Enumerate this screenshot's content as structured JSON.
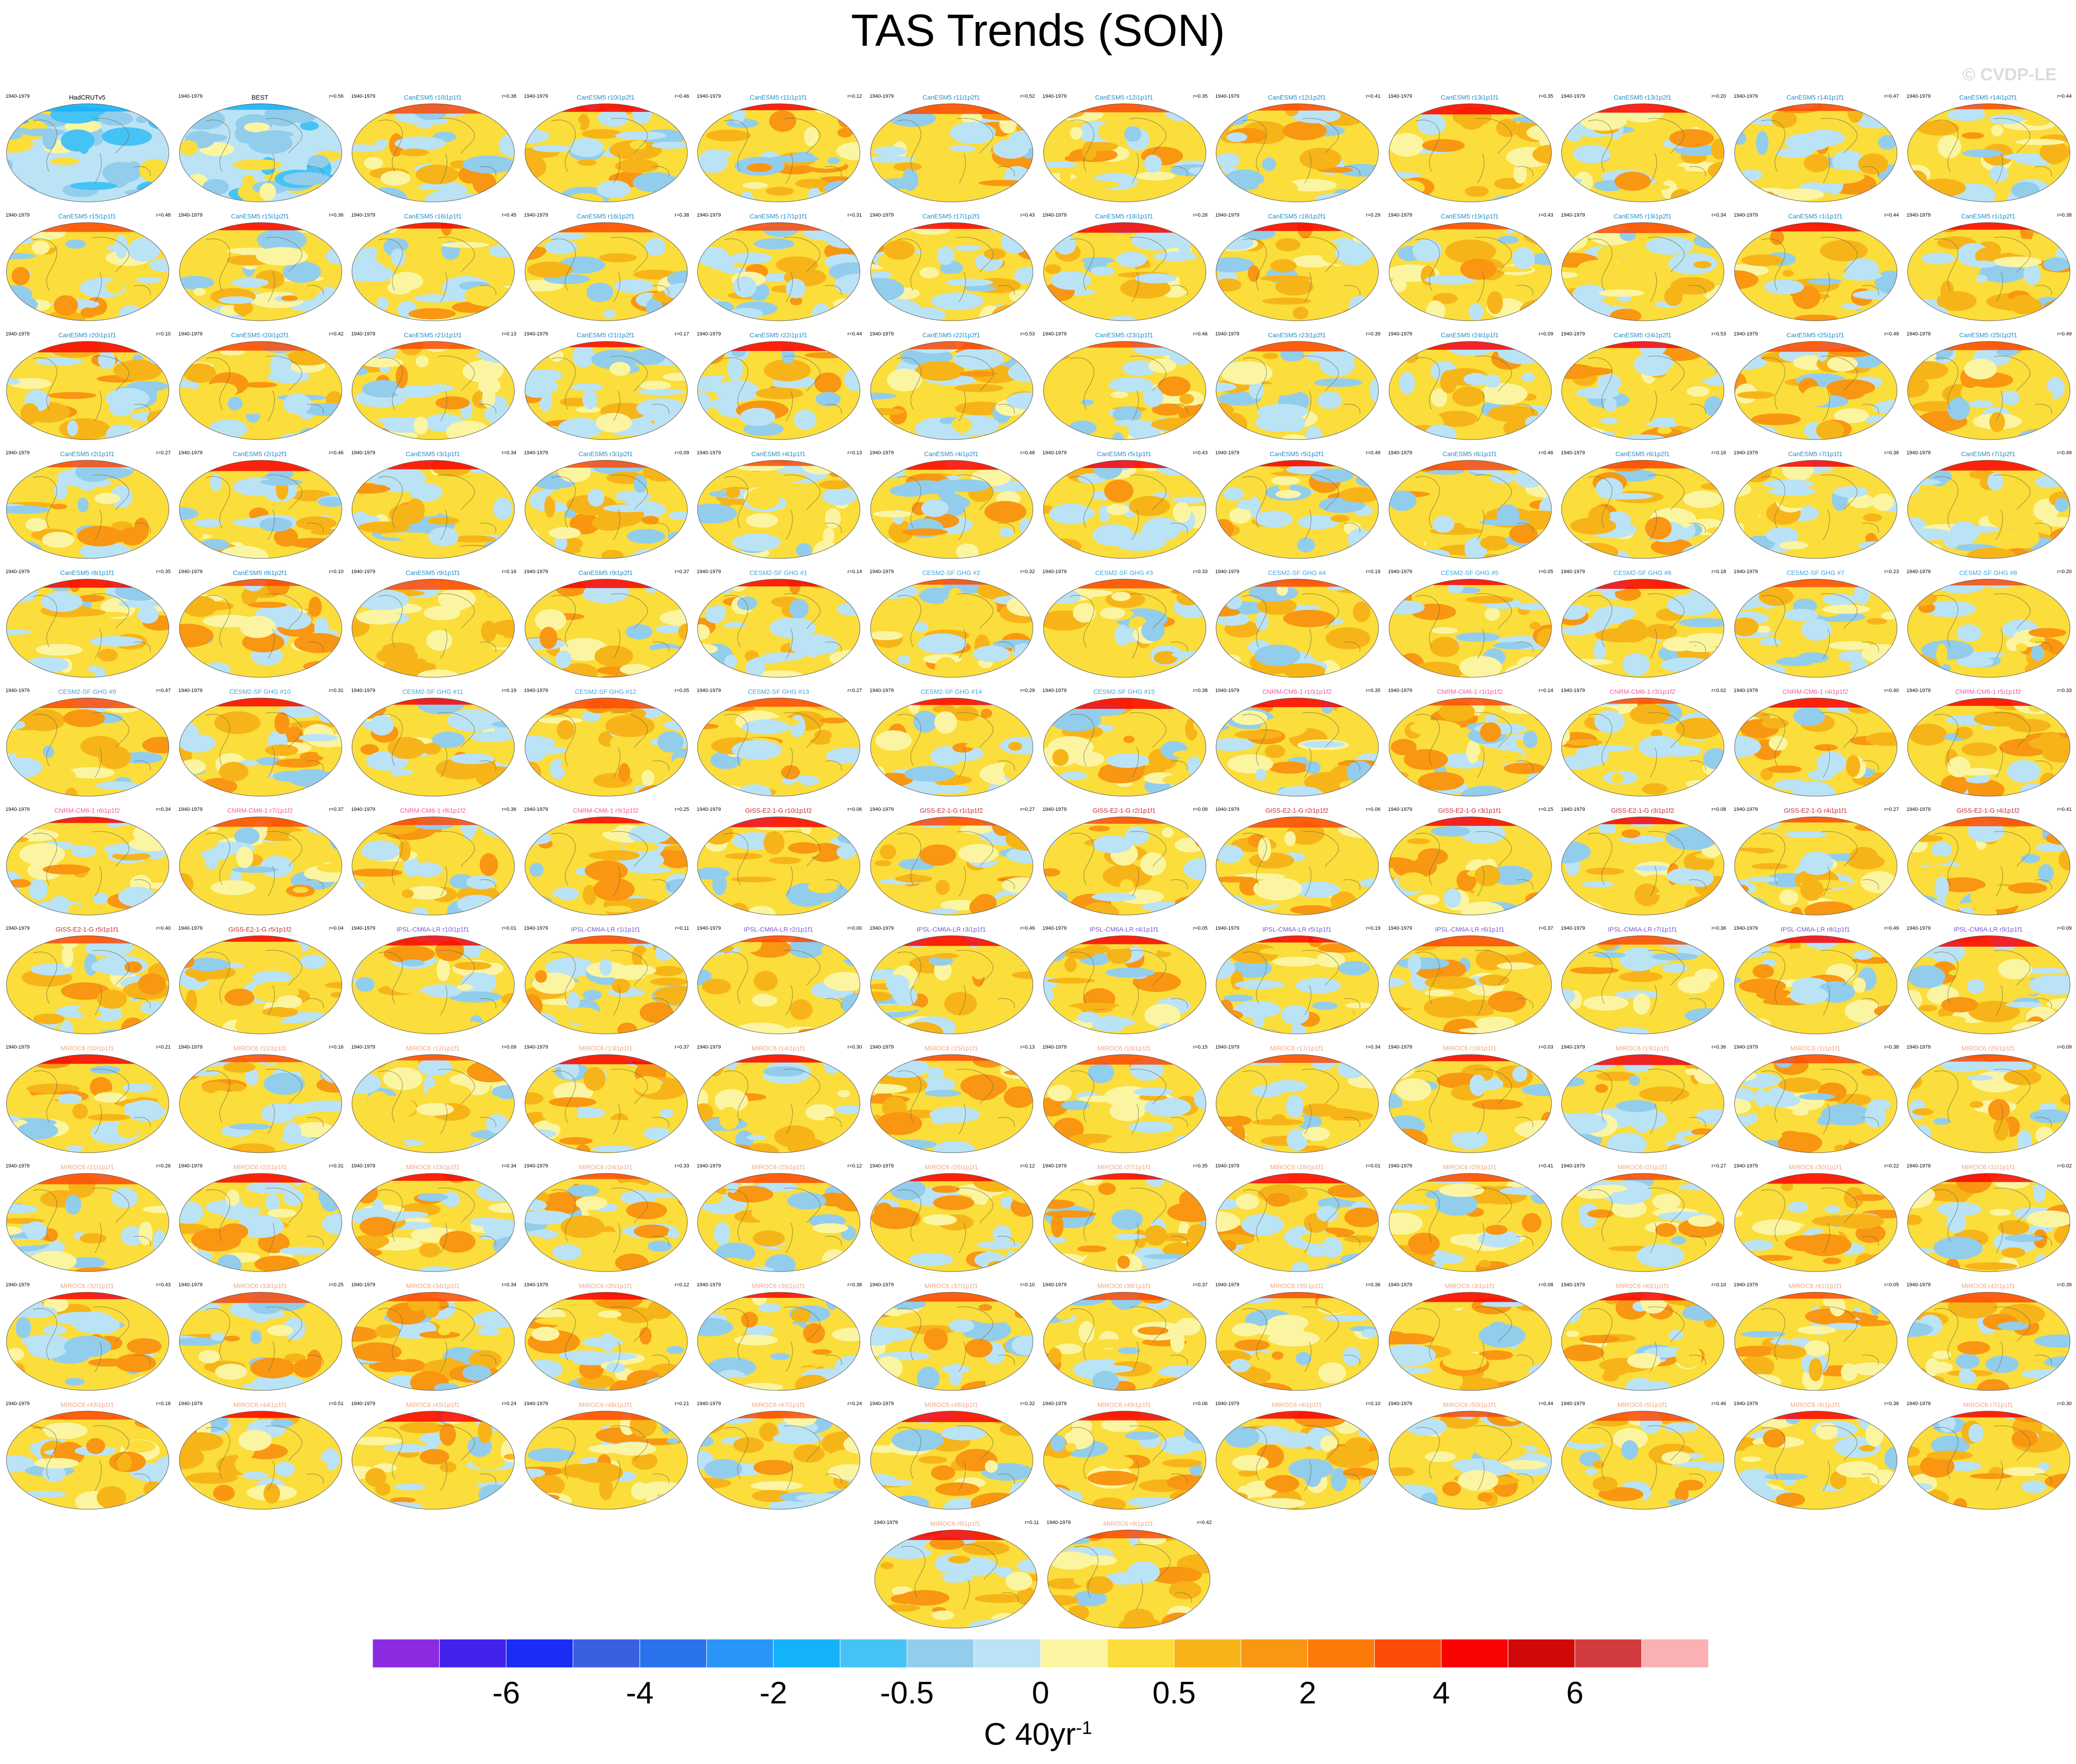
{
  "title": "TAS Trends (SON)",
  "watermark": "© CVDP-LE",
  "period_label": "1940-1979",
  "colors": {
    "palette": [
      "#8a2be2",
      "#4422ee",
      "#1a2cf5",
      "#3a5fe0",
      "#2a72ec",
      "#2895f7",
      "#14b2f8",
      "#45c3f5",
      "#93cdec",
      "#bbe3f6",
      "#fbf5a2",
      "#fbdd3b",
      "#f7b418",
      "#f99612",
      "#fb7a08",
      "#fc4a08",
      "#f90202",
      "#d00808",
      "#d23c3e",
      "#fbb0b3"
    ],
    "obs_label": "#000000",
    "CanESM5": "#1f8cc7",
    "CESM2-SF GHG": "#3fa3df",
    "CNRM-CM6-1": "#f05aa0",
    "GISS-E2-1-G": "#c8282d",
    "IPSL-CM6A-LR": "#7855d6",
    "MIROC6": "#f4a582"
  },
  "colorbar": {
    "unit": "C 40yr",
    "unit_exponent": "-1",
    "tick_labels": [
      "-6",
      "-4",
      "-2",
      "-0.5",
      "0",
      "0.5",
      "2",
      "4",
      "6"
    ],
    "tick_box_index": [
      2,
      4,
      6,
      8,
      10,
      12,
      14,
      16,
      18
    ]
  },
  "chart_data": {
    "type": "heatmap",
    "title": "TAS Trends (SON)",
    "layout": "small-multiple global maps, 12 per row",
    "period": "1940-1979",
    "panels": [
      {
        "name": "HadCRUTv5",
        "r": null
      },
      {
        "name": "BEST",
        "r": 0.56
      },
      {
        "name": "CanESM5 r10i1p1f1",
        "r": 0.38
      },
      {
        "name": "CanESM5 r10i1p2f1",
        "r": 0.46
      },
      {
        "name": "CanESM5 r11i1p1f1",
        "r": 0.12
      },
      {
        "name": "CanESM5 r11i1p2f1",
        "r": 0.52
      },
      {
        "name": "CanESM5 r12i1p1f1",
        "r": 0.35
      },
      {
        "name": "CanESM5 r12i1p2f1",
        "r": 0.41
      },
      {
        "name": "CanESM5 r13i1p1f1",
        "r": 0.35
      },
      {
        "name": "CanESM5 r13i1p2f1",
        "r": 0.2
      },
      {
        "name": "CanESM5 r14i1p1f1",
        "r": 0.47
      },
      {
        "name": "CanESM5 r14i1p2f1",
        "r": 0.44
      },
      {
        "name": "CanESM5 r15i1p1f1",
        "r": 0.48
      },
      {
        "name": "CanESM5 r15i1p2f1",
        "r": 0.36
      },
      {
        "name": "CanESM5 r16i1p1f1",
        "r": 0.45
      },
      {
        "name": "CanESM5 r16i1p2f1",
        "r": 0.38
      },
      {
        "name": "CanESM5 r17i1p1f1",
        "r": 0.31
      },
      {
        "name": "CanESM5 r17i1p2f1",
        "r": 0.43
      },
      {
        "name": "CanESM5 r18i1p1f1",
        "r": 0.28
      },
      {
        "name": "CanESM5 r18i1p2f1",
        "r": 0.29
      },
      {
        "name": "CanESM5 r19i1p1f1",
        "r": 0.43
      },
      {
        "name": "CanESM5 r19i1p2f1",
        "r": 0.34
      },
      {
        "name": "CanESM5 r1i1p1f1",
        "r": 0.44
      },
      {
        "name": "CanESM5 r1i1p2f1",
        "r": 0.38
      },
      {
        "name": "CanESM5 r20i1p1f1",
        "r": 0.1
      },
      {
        "name": "CanESM5 r20i1p2f1",
        "r": 0.42
      },
      {
        "name": "CanESM5 r21i1p1f1",
        "r": 0.13
      },
      {
        "name": "CanESM5 r21i1p2f1",
        "r": 0.17
      },
      {
        "name": "CanESM5 r22i1p1f1",
        "r": 0.44
      },
      {
        "name": "CanESM5 r22i1p2f1",
        "r": 0.53
      },
      {
        "name": "CanESM5 r23i1p1f1",
        "r": 0.46
      },
      {
        "name": "CanESM5 r23i1p2f1",
        "r": 0.39
      },
      {
        "name": "CanESM5 r24i1p1f1",
        "r": 0.09
      },
      {
        "name": "CanESM5 r24i1p2f1",
        "r": 0.53
      },
      {
        "name": "CanESM5 r25i1p1f1",
        "r": 0.49
      },
      {
        "name": "CanESM5 r25i1p2f1",
        "r": 0.49
      },
      {
        "name": "CanESM5 r2i1p1f1",
        "r": 0.27
      },
      {
        "name": "CanESM5 r2i1p2f1",
        "r": 0.46
      },
      {
        "name": "CanESM5 r3i1p1f1",
        "r": 0.34
      },
      {
        "name": "CanESM5 r3i1p2f1",
        "r": 0.09
      },
      {
        "name": "CanESM5 r4i1p1f1",
        "r": 0.13
      },
      {
        "name": "CanESM5 r4i1p2f1",
        "r": 0.48
      },
      {
        "name": "CanESM5 r5i1p1f1",
        "r": 0.43
      },
      {
        "name": "CanESM5 r5i1p2f1",
        "r": 0.49
      },
      {
        "name": "CanESM5 r6i1p1f1",
        "r": 0.46
      },
      {
        "name": "CanESM5 r6i1p2f1",
        "r": 0.16
      },
      {
        "name": "CanESM5 r7i1p1f1",
        "r": 0.36
      },
      {
        "name": "CanESM5 r7i1p2f1",
        "r": 0.49
      },
      {
        "name": "CanESM5 r8i1p1f1",
        "r": 0.35
      },
      {
        "name": "CanESM5 r8i1p2f1",
        "r": 0.1
      },
      {
        "name": "CanESM5 r9i1p1f1",
        "r": 0.16
      },
      {
        "name": "CanESM5 r9i1p2f1",
        "r": 0.37
      },
      {
        "name": "CESM2-SF GHG #1",
        "r": 0.14
      },
      {
        "name": "CESM2-SF GHG #2",
        "r": 0.32
      },
      {
        "name": "CESM2-SF GHG #3",
        "r": 0.33
      },
      {
        "name": "CESM2-SF GHG #4",
        "r": 0.19
      },
      {
        "name": "CESM2-SF GHG #5",
        "r": 0.05
      },
      {
        "name": "CESM2-SF GHG #6",
        "r": 0.18
      },
      {
        "name": "CESM2-SF GHG #7",
        "r": 0.23
      },
      {
        "name": "CESM2-SF GHG #8",
        "r": 0.2
      },
      {
        "name": "CESM2-SF GHG #9",
        "r": 0.47
      },
      {
        "name": "CESM2-SF GHG #10",
        "r": 0.31
      },
      {
        "name": "CESM2-SF GHG #11",
        "r": 0.19
      },
      {
        "name": "CESM2-SF GHG #12",
        "r": 0.05
      },
      {
        "name": "CESM2-SF GHG #13",
        "r": 0.27
      },
      {
        "name": "CESM2-SF GHG #14",
        "r": 0.29
      },
      {
        "name": "CESM2-SF GHG #15",
        "r": 0.38
      },
      {
        "name": "CNRM-CM6-1 r10i1p1f2",
        "r": 0.35
      },
      {
        "name": "CNRM-CM6-1 r1i1p1f2",
        "r": 0.14
      },
      {
        "name": "CNRM-CM6-1 r3i1p1f2",
        "r": 0.02
      },
      {
        "name": "CNRM-CM6-1 r4i1p1f2",
        "r": 0.4
      },
      {
        "name": "CNRM-CM6-1 r5i1p1f2",
        "r": 0.33
      },
      {
        "name": "CNRM-CM6-1 r6i1p1f2",
        "r": 0.34
      },
      {
        "name": "CNRM-CM6-1 r7i1p1f2",
        "r": 0.37
      },
      {
        "name": "CNRM-CM6-1 r8i1p1f2",
        "r": 0.36
      },
      {
        "name": "CNRM-CM6-1 r9i1p1f2",
        "r": 0.25
      },
      {
        "name": "GISS-E2-1-G r10i1p1f2",
        "r": 0.06
      },
      {
        "name": "GISS-E2-1-G r1i1p1f2",
        "r": 0.27
      },
      {
        "name": "GISS-E2-1-G r2i1p1f1",
        "r": 0.09
      },
      {
        "name": "GISS-E2-1-G r2i1p1f2",
        "r": 0.06
      },
      {
        "name": "GISS-E2-1-G r3i1p1f1",
        "r": 0.15
      },
      {
        "name": "GISS-E2-1-G r3i1p1f2",
        "r": 0.08
      },
      {
        "name": "GISS-E2-1-G r4i1p1f1",
        "r": 0.27
      },
      {
        "name": "GISS-E2-1-G r4i1p1f2",
        "r": 0.41
      },
      {
        "name": "GISS-E2-1-G r5i1p1f1",
        "r": 0.4
      },
      {
        "name": "GISS-E2-1-G r5i1p1f2",
        "r": 0.04
      },
      {
        "name": "IPSL-CM6A-LR r10i1p1f1",
        "r": 0.01
      },
      {
        "name": "IPSL-CM6A-LR r1i1p1f1",
        "r": 0.11
      },
      {
        "name": "IPSL-CM6A-LR r2i1p1f1",
        "r": 0.0
      },
      {
        "name": "IPSL-CM6A-LR r3i1p1f1",
        "r": 0.49
      },
      {
        "name": "IPSL-CM6A-LR r4i1p1f1",
        "r": 0.05
      },
      {
        "name": "IPSL-CM6A-LR r5i1p1f1",
        "r": 0.19
      },
      {
        "name": "IPSL-CM6A-LR r6i1p1f1",
        "r": 0.37
      },
      {
        "name": "IPSL-CM6A-LR r7i1p1f1",
        "r": 0.36
      },
      {
        "name": "IPSL-CM6A-LR r8i1p1f1",
        "r": 0.49
      },
      {
        "name": "IPSL-CM6A-LR r9i1p1f1",
        "r": 0.09
      },
      {
        "name": "MIROC6 r10i1p1f1",
        "r": 0.21
      },
      {
        "name": "MIROC6 r11i1p1f1",
        "r": 0.16
      },
      {
        "name": "MIROC6 r12i1p1f1",
        "r": 0.09
      },
      {
        "name": "MIROC6 r13i1p1f1",
        "r": 0.37
      },
      {
        "name": "MIROC6 r14i1p1f1",
        "r": 0.3
      },
      {
        "name": "MIROC6 r15i1p1f1",
        "r": 0.13
      },
      {
        "name": "MIROC6 r16i1p1f1",
        "r": 0.15
      },
      {
        "name": "MIROC6 r17i1p1f1",
        "r": 0.34
      },
      {
        "name": "MIROC6 r18i1p1f1",
        "r": 0.03
      },
      {
        "name": "MIROC6 r19i1p1f1",
        "r": 0.36
      },
      {
        "name": "MIROC6 r1i1p1f1",
        "r": 0.38
      },
      {
        "name": "MIROC6 r20i1p1f1",
        "r": 0.09
      },
      {
        "name": "MIROC6 r21i1p1f1",
        "r": 0.26
      },
      {
        "name": "MIROC6 r22i1p1f1",
        "r": 0.31
      },
      {
        "name": "MIROC6 r23i1p1f1",
        "r": 0.34
      },
      {
        "name": "MIROC6 r24i1p1f1",
        "r": 0.33
      },
      {
        "name": "MIROC6 r25i1p1f1",
        "r": 0.12
      },
      {
        "name": "MIROC6 r26i1p1f1",
        "r": 0.12
      },
      {
        "name": "MIROC6 r27i1p1f1",
        "r": 0.35
      },
      {
        "name": "MIROC6 r28i1p1f1",
        "r": 0.01
      },
      {
        "name": "MIROC6 r29i1p1f1",
        "r": 0.41
      },
      {
        "name": "MIROC6 r2i1p1f1",
        "r": 0.27
      },
      {
        "name": "MIROC6 r30i1p1f1",
        "r": 0.22
      },
      {
        "name": "MIROC6 r31i1p1f1",
        "r": 0.02
      },
      {
        "name": "MIROC6 r32i1p1f1",
        "r": 0.43
      },
      {
        "name": "MIROC6 r33i1p1f1",
        "r": 0.25
      },
      {
        "name": "MIROC6 r34i1p1f1",
        "r": 0.34
      },
      {
        "name": "MIROC6 r35i1p1f1",
        "r": 0.12
      },
      {
        "name": "MIROC6 r36i1p1f1",
        "r": 0.38
      },
      {
        "name": "MIROC6 r37i1p1f1",
        "r": 0.1
      },
      {
        "name": "MIROC6 r38i1p1f1",
        "r": 0.37
      },
      {
        "name": "MIROC6 r39i1p1f1",
        "r": 0.36
      },
      {
        "name": "MIROC6 r3i1p1f1",
        "r": 0.08
      },
      {
        "name": "MIROC6 r40i1p1f1",
        "r": 0.1
      },
      {
        "name": "MIROC6 r41i1p1f1",
        "r": 0.05
      },
      {
        "name": "MIROC6 r42i1p1f1",
        "r": 0.39
      },
      {
        "name": "MIROC6 r43i1p1f1",
        "r": 0.16
      },
      {
        "name": "MIROC6 r44i1p1f1",
        "r": 0.51
      },
      {
        "name": "MIROC6 r45i1p1f1",
        "r": 0.24
      },
      {
        "name": "MIROC6 r46i1p1f1",
        "r": 0.21
      },
      {
        "name": "MIROC6 r47i1p1f1",
        "r": 0.24
      },
      {
        "name": "MIROC6 r48i1p1f1",
        "r": 0.32
      },
      {
        "name": "MIROC6 r49i1p1f1",
        "r": 0.06
      },
      {
        "name": "MIROC6 r4i1p1f1",
        "r": 0.1
      },
      {
        "name": "MIROC6 r50i1p1f1",
        "r": 0.44
      },
      {
        "name": "MIROC6 r5i1p1f1",
        "r": 0.46
      },
      {
        "name": "MIROC6 r6i1p1f1",
        "r": 0.36
      },
      {
        "name": "MIROC6 r7i1p1f1",
        "r": 0.3
      },
      {
        "name": "MIROC6 r8i1p1f1",
        "r": 0.11
      },
      {
        "name": "MIROC6 r9i1p1f1",
        "r": 0.42
      }
    ]
  }
}
